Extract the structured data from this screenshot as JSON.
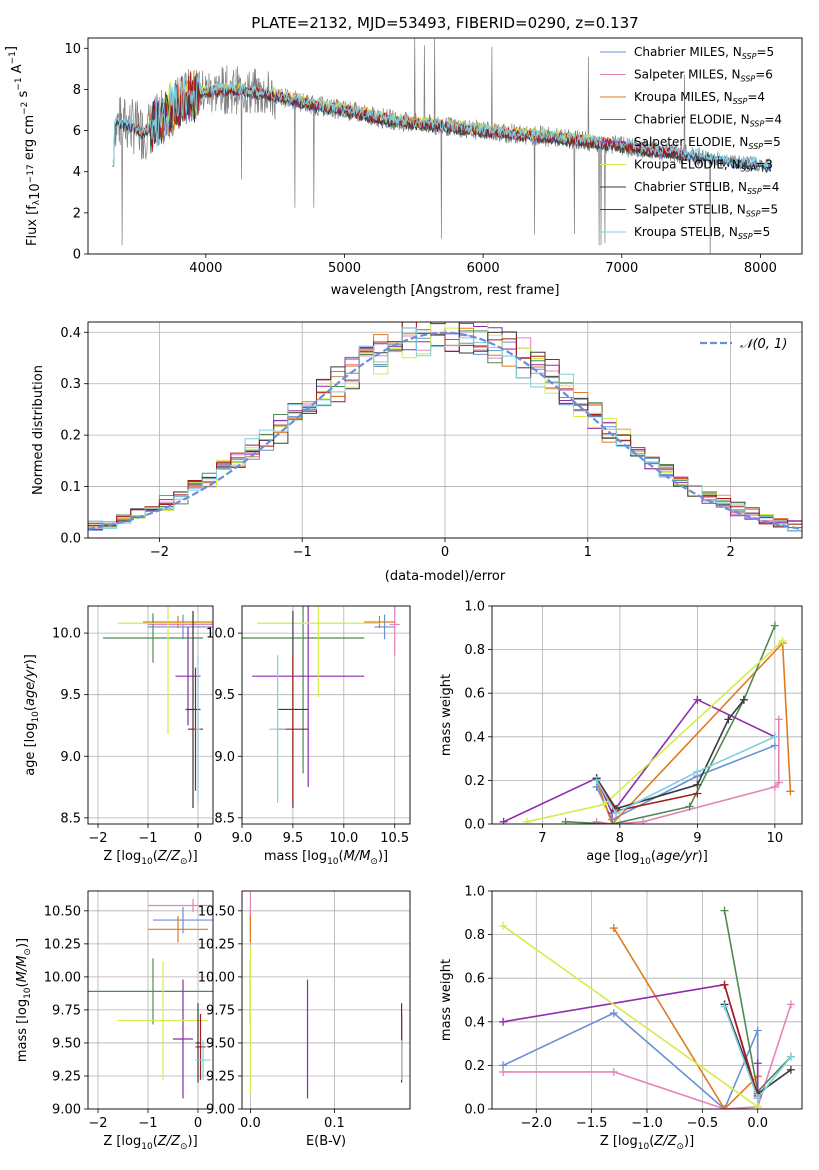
{
  "figure_title": "PLATE=2132, MJD=53493, FIBERID=0290, z=0.137",
  "colors": {
    "Chabrier MILES": "#6a8fd9",
    "Salpeter MILES": "#e584b8",
    "Kroupa MILES": "#e07a1f",
    "Chabrier ELODIE": "#4f8a52",
    "Salpeter ELODIE": "#8e2bab",
    "Kroupa ELODIE": "#d4ec4e",
    "Chabrier STELIB": "#3a3a3a",
    "Salpeter STELIB": "#a81c1c",
    "Kroupa STELIB": "#7ecfe0",
    "data": "#7f7f7f",
    "normal_curve": "#6a8fd9"
  },
  "chart_data": [
    {
      "id": "spectrum",
      "type": "line",
      "xlabel": "wavelength [Angstrom, rest frame]",
      "ylabel": "Flux [f",
      "xlim": [
        3150,
        8300
      ],
      "ylim": [
        0,
        10.5
      ],
      "xticks": [
        4000,
        5000,
        6000,
        7000,
        8000
      ],
      "yticks": [
        0,
        2,
        4,
        6,
        8,
        10
      ],
      "grid": false,
      "legend_position": "top-right",
      "legend": [
        {
          "model": "Chabrier MILES",
          "nssp": "5"
        },
        {
          "model": "Salpeter MILES",
          "nssp": "6"
        },
        {
          "model": "Kroupa MILES",
          "nssp": "4"
        },
        {
          "model": "Chabrier ELODIE",
          "nssp": "4"
        },
        {
          "model": "Salpeter ELODIE",
          "nssp": "5"
        },
        {
          "model": "Kroupa ELODIE",
          "nssp": "3"
        },
        {
          "model": "Chabrier STELIB",
          "nssp": "4"
        },
        {
          "model": "Salpeter STELIB",
          "nssp": "5"
        },
        {
          "model": "Kroupa STELIB",
          "nssp": "5"
        }
      ],
      "continuum": [
        [
          3340,
          6.4
        ],
        [
          3450,
          6.3
        ],
        [
          3550,
          5.9
        ],
        [
          3700,
          6.7
        ],
        [
          3850,
          7.6
        ],
        [
          4000,
          7.9
        ],
        [
          4200,
          8.0
        ],
        [
          4400,
          7.8
        ],
        [
          4600,
          7.55
        ],
        [
          4800,
          7.2
        ],
        [
          5000,
          7.0
        ],
        [
          5200,
          6.7
        ],
        [
          5400,
          6.45
        ],
        [
          5600,
          6.3
        ],
        [
          5800,
          6.15
        ],
        [
          6000,
          6.0
        ],
        [
          6200,
          5.85
        ],
        [
          6400,
          5.75
        ],
        [
          6600,
          5.6
        ],
        [
          6800,
          5.45
        ],
        [
          7000,
          5.25
        ],
        [
          7200,
          5.05
        ],
        [
          7400,
          4.9
        ],
        [
          7600,
          4.7
        ],
        [
          7800,
          4.5
        ],
        [
          8000,
          4.35
        ],
        [
          8080,
          4.3
        ]
      ]
    },
    {
      "id": "residuals",
      "type": "histogram",
      "xlabel": "(data-model)/error",
      "ylabel": "Normed distribution",
      "xlim": [
        -2.5,
        2.5
      ],
      "ylim": [
        0,
        0.42
      ],
      "xticks": [
        -2,
        -1,
        0,
        1,
        2
      ],
      "yticks": [
        0.0,
        0.1,
        0.2,
        0.3,
        0.4
      ],
      "grid": true,
      "legend_position": "top-right",
      "reference_curve": "normal(0,1)",
      "reference_label": "𝒩(0, 1)",
      "bin_width": 0.1
    },
    {
      "id": "age_vs_z",
      "type": "scatter",
      "xlabel": "Z [log",
      "ylabel": "age  [log",
      "xlim": [
        -2.2,
        0.3
      ],
      "ylim": [
        8.45,
        10.22
      ],
      "xticks": [
        -2,
        -1,
        0
      ],
      "yticks": [
        8.5,
        9.0,
        9.5,
        10.0
      ],
      "grid": true,
      "points": [
        {
          "model": "Chabrier MILES",
          "x": -0.3,
          "y": 10.05,
          "xerr": 0.7,
          "yerr": 0.1
        },
        {
          "model": "Salpeter MILES",
          "x": -0.1,
          "y": 10.07,
          "xerr": 0.9,
          "yerr": 0.08
        },
        {
          "model": "Kroupa MILES",
          "x": -0.4,
          "y": 10.09,
          "xerr": 0.7,
          "yerr": 0.05
        },
        {
          "model": "Chabrier ELODIE",
          "x": -0.9,
          "y": 9.96,
          "xerr": 1.0,
          "yerr": 0.2
        },
        {
          "model": "Salpeter ELODIE",
          "x": -0.2,
          "y": 9.65,
          "xerr": 0.25,
          "yerr": 0.4
        },
        {
          "model": "Kroupa ELODIE",
          "x": -0.6,
          "y": 10.08,
          "xerr": 1.0,
          "yerr": 0.9
        },
        {
          "model": "Chabrier STELIB",
          "x": -0.1,
          "y": 9.38,
          "xerr": 0.15,
          "yerr": 0.8
        },
        {
          "model": "Salpeter STELIB",
          "x": -0.05,
          "y": 9.22,
          "xerr": 0.15,
          "yerr": 0.5
        },
        {
          "model": "Kroupa STELIB",
          "x": 0.0,
          "y": 9.22,
          "xerr": 0.05,
          "yerr": 0.6
        }
      ]
    },
    {
      "id": "age_vs_mass",
      "type": "scatter",
      "xlabel": "mass [log",
      "ylabel": "",
      "xlim": [
        9.0,
        10.65
      ],
      "ylim": [
        8.45,
        10.22
      ],
      "xticks": [
        9.0,
        9.5,
        10.0,
        10.5
      ],
      "yticks": [
        8.5,
        9.0,
        9.5,
        10.0
      ],
      "grid": true,
      "points": [
        {
          "model": "Chabrier MILES",
          "x": 10.4,
          "y": 10.05,
          "xerr": 0.1,
          "yerr": 0.1
        },
        {
          "model": "Salpeter MILES",
          "x": 10.5,
          "y": 10.07,
          "xerr": 0.05,
          "yerr": 0.25
        },
        {
          "model": "Kroupa MILES",
          "x": 10.35,
          "y": 10.09,
          "xerr": 0.15,
          "yerr": 0.05
        },
        {
          "model": "Chabrier ELODIE",
          "x": 9.6,
          "y": 9.96,
          "xerr": 0.6,
          "yerr": 1.1
        },
        {
          "model": "Salpeter ELODIE",
          "x": 9.65,
          "y": 9.65,
          "xerr": 0.55,
          "yerr": 0.9
        },
        {
          "model": "Kroupa ELODIE",
          "x": 9.75,
          "y": 10.08,
          "xerr": 0.6,
          "yerr": 0.6
        },
        {
          "model": "Chabrier STELIB",
          "x": 9.5,
          "y": 9.38,
          "xerr": 0.15,
          "yerr": 0.8
        },
        {
          "model": "Salpeter STELIB",
          "x": 9.5,
          "y": 9.22,
          "xerr": 0.15,
          "yerr": 0.6
        },
        {
          "model": "Kroupa STELIB",
          "x": 9.35,
          "y": 9.22,
          "xerr": 0.08,
          "yerr": 0.6
        }
      ]
    },
    {
      "id": "weight_vs_age",
      "type": "line",
      "xlabel": "age  [log",
      "ylabel": "mass weight",
      "xlim": [
        6.35,
        10.35
      ],
      "ylim": [
        0.0,
        1.0
      ],
      "xticks": [
        7,
        8,
        9,
        10
      ],
      "yticks": [
        0.0,
        0.2,
        0.4,
        0.6,
        0.8,
        1.0
      ],
      "grid": true,
      "series": [
        {
          "model": "Chabrier MILES",
          "x": [
            7.7,
            7.9,
            9.0,
            10.0
          ],
          "y": [
            0.17,
            0.02,
            0.22,
            0.36
          ]
        },
        {
          "model": "Salpeter MILES",
          "x": [
            7.7,
            7.9,
            8.3,
            10.0,
            10.05,
            10.05
          ],
          "y": [
            0.01,
            0.0,
            0.01,
            0.17,
            0.19,
            0.48
          ]
        },
        {
          "model": "Kroupa MILES",
          "x": [
            7.7,
            7.9,
            10.1,
            10.2
          ],
          "y": [
            0.2,
            0.0,
            0.83,
            0.15
          ]
        },
        {
          "model": "Chabrier ELODIE",
          "x": [
            7.3,
            7.9,
            8.9,
            9.6,
            10.0
          ],
          "y": [
            0.01,
            0.0,
            0.08,
            0.57,
            0.91
          ]
        },
        {
          "model": "Salpeter ELODIE",
          "x": [
            6.5,
            7.7,
            7.9,
            9.0,
            10.0
          ],
          "y": [
            0.01,
            0.21,
            0.05,
            0.57,
            0.4
          ]
        },
        {
          "model": "Kroupa ELODIE",
          "x": [
            6.8,
            7.8,
            10.1
          ],
          "y": [
            0.01,
            0.09,
            0.84
          ]
        },
        {
          "model": "Chabrier STELIB",
          "x": [
            7.7,
            7.95,
            9.0,
            9.4,
            9.6
          ],
          "y": [
            0.21,
            0.07,
            0.18,
            0.48,
            0.57
          ]
        },
        {
          "model": "Salpeter STELIB",
          "x": [
            7.7,
            7.95,
            9.0
          ],
          "y": [
            0.2,
            0.06,
            0.14
          ]
        },
        {
          "model": "Kroupa STELIB",
          "x": [
            7.7,
            7.95,
            9.0,
            10.0
          ],
          "y": [
            0.2,
            0.05,
            0.24,
            0.4
          ]
        }
      ]
    },
    {
      "id": "mass_vs_z",
      "type": "scatter",
      "xlabel": "Z [log",
      "ylabel": "mass [log",
      "xlim": [
        -2.2,
        0.3
      ],
      "ylim": [
        9.0,
        10.65
      ],
      "xticks": [
        -2,
        -1,
        0
      ],
      "yticks": [
        9.0,
        9.25,
        9.5,
        9.75,
        10.0,
        10.25,
        10.5
      ],
      "grid": true,
      "points": [
        {
          "model": "Chabrier MILES",
          "x": -0.3,
          "y": 10.43,
          "xerr": 0.6,
          "yerr": 0.1
        },
        {
          "model": "Salpeter MILES",
          "x": -0.1,
          "y": 10.54,
          "xerr": 0.9,
          "yerr": 0.05
        },
        {
          "model": "Kroupa MILES",
          "x": -0.4,
          "y": 10.36,
          "xerr": 0.6,
          "yerr": 0.1
        },
        {
          "model": "Chabrier ELODIE",
          "x": -0.9,
          "y": 9.89,
          "xerr": 1.35,
          "yerr": 0.25
        },
        {
          "model": "Salpeter ELODIE",
          "x": -0.3,
          "y": 9.53,
          "xerr": 0.2,
          "yerr": 0.45
        },
        {
          "model": "Kroupa ELODIE",
          "x": -0.7,
          "y": 9.67,
          "xerr": 0.9,
          "yerr": 0.45
        },
        {
          "model": "Chabrier STELIB",
          "x": 0.0,
          "y": 9.5,
          "xerr": 0.05,
          "yerr": 0.3
        },
        {
          "model": "Salpeter STELIB",
          "x": 0.05,
          "y": 9.47,
          "xerr": 0.1,
          "yerr": 0.25
        },
        {
          "model": "Kroupa STELIB",
          "x": 0.1,
          "y": 9.37,
          "xerr": 0.15,
          "yerr": 0.15
        }
      ]
    },
    {
      "id": "mass_vs_ebv",
      "type": "scatter",
      "xlabel": "E(B-V)",
      "ylabel": "",
      "xlim": [
        -0.01,
        0.19
      ],
      "ylim": [
        9.0,
        10.65
      ],
      "xticks": [
        0.0,
        0.1
      ],
      "yticks": [
        9.0,
        9.25,
        9.5,
        9.75,
        10.0,
        10.25,
        10.5
      ],
      "grid": true,
      "points": [
        {
          "model": "Chabrier MILES",
          "x": 0.0,
          "y": 10.43,
          "xerr": 0,
          "yerr": 0.1
        },
        {
          "model": "Salpeter MILES",
          "x": 0.0,
          "y": 10.54,
          "xerr": 0,
          "yerr": 0.1
        },
        {
          "model": "Kroupa MILES",
          "x": 0.0,
          "y": 10.36,
          "xerr": 0,
          "yerr": 0.1
        },
        {
          "model": "Chabrier ELODIE",
          "x": 0.0,
          "y": 9.89,
          "xerr": 0,
          "yerr": 0.25
        },
        {
          "model": "Salpeter ELODIE",
          "x": 0.068,
          "y": 9.53,
          "xerr": 0,
          "yerr": 0.45
        },
        {
          "model": "Kroupa ELODIE",
          "x": 0.0,
          "y": 9.67,
          "xerr": 0,
          "yerr": 0.55
        },
        {
          "model": "Chabrier STELIB",
          "x": 0.18,
          "y": 9.5,
          "xerr": 0,
          "yerr": 0.3
        },
        {
          "model": "Salpeter STELIB",
          "x": 0.18,
          "y": 9.47,
          "xerr": 0,
          "yerr": 0.25
        },
        {
          "model": "Kroupa STELIB",
          "x": 0.18,
          "y": 9.37,
          "xerr": 0,
          "yerr": 0.15
        }
      ]
    },
    {
      "id": "weight_vs_z",
      "type": "line",
      "xlabel": "Z [log",
      "ylabel": "mass weight",
      "xlim": [
        -2.4,
        0.4
      ],
      "ylim": [
        0.0,
        1.0
      ],
      "xticks": [
        -2.0,
        -1.5,
        -1.0,
        -0.5,
        0.0
      ],
      "yticks": [
        0.0,
        0.2,
        0.4,
        0.6,
        0.8,
        1.0
      ],
      "grid": true,
      "series": [
        {
          "model": "Chabrier MILES",
          "x": [
            -2.3,
            -1.3,
            -0.3,
            0.0,
            0.0
          ],
          "y": [
            0.2,
            0.44,
            0.0,
            0.36,
            0.05
          ]
        },
        {
          "model": "Salpeter MILES",
          "x": [
            -2.3,
            -1.3,
            -0.3,
            0.0,
            0.3
          ],
          "y": [
            0.17,
            0.17,
            0.0,
            0.01,
            0.48
          ]
        },
        {
          "model": "Kroupa MILES",
          "x": [
            -1.3,
            -0.3,
            0.0
          ],
          "y": [
            0.83,
            0.0,
            0.15
          ]
        },
        {
          "model": "Chabrier ELODIE",
          "x": [
            -0.3,
            0.0,
            0.3
          ],
          "y": [
            0.91,
            0.08,
            0.24
          ]
        },
        {
          "model": "Salpeter ELODIE",
          "x": [
            -2.3,
            -0.3,
            0.0,
            0.0
          ],
          "y": [
            0.4,
            0.57,
            0.05,
            0.21
          ]
        },
        {
          "model": "Kroupa ELODIE",
          "x": [
            -2.3,
            0.0
          ],
          "y": [
            0.84,
            0.01
          ]
        },
        {
          "model": "Chabrier STELIB",
          "x": [
            -0.3,
            0.0,
            0.3
          ],
          "y": [
            0.48,
            0.07,
            0.18
          ]
        },
        {
          "model": "Salpeter STELIB",
          "x": [
            -0.3,
            0.0
          ],
          "y": [
            0.57,
            0.06
          ]
        },
        {
          "model": "Kroupa STELIB",
          "x": [
            -0.3,
            0.0,
            0.3
          ],
          "y": [
            0.47,
            0.05,
            0.24
          ]
        }
      ]
    }
  ]
}
